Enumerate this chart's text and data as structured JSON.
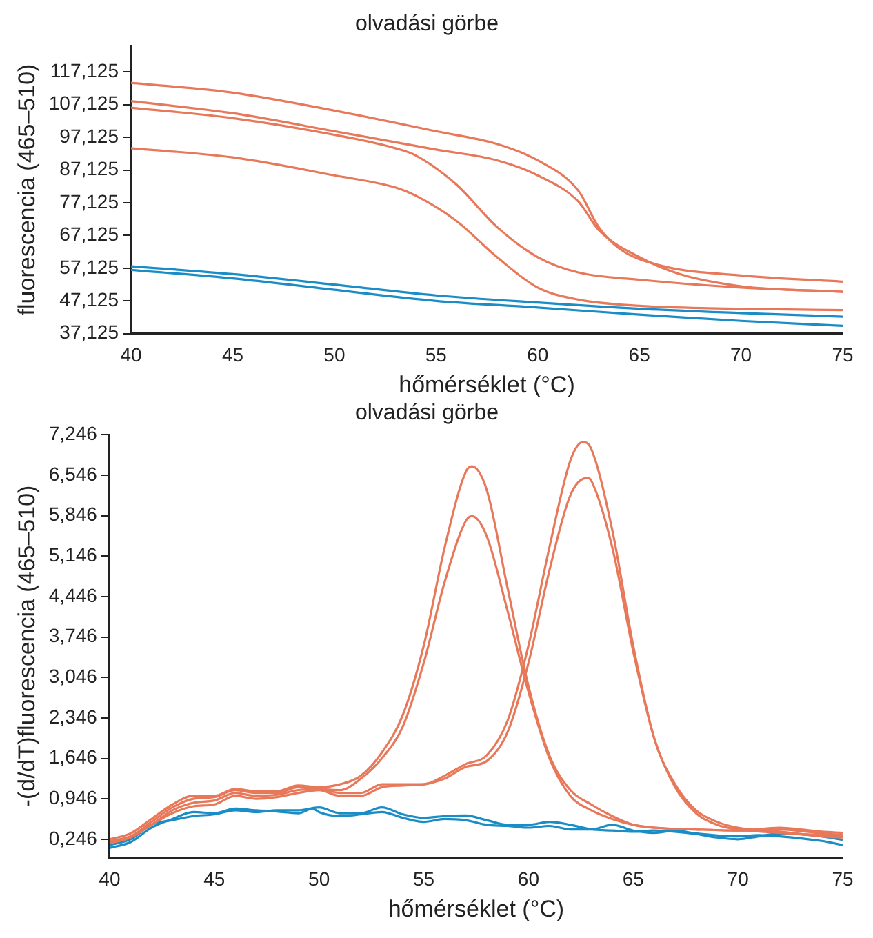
{
  "chart_data": [
    {
      "type": "line",
      "title": "olvadási görbe",
      "xlabel": "hőmérséklet (°C)",
      "ylabel": "fluorescencia (465–510)",
      "grid": false,
      "legend": false,
      "marker": "none",
      "xlim": [
        40,
        75
      ],
      "xticks": [
        40,
        45,
        50,
        55,
        60,
        65,
        70,
        75
      ],
      "ylim": [
        37.125,
        125.125
      ],
      "yticks": [
        {
          "value": 37.125,
          "label": "37,125"
        },
        {
          "value": 47.125,
          "label": "47,125"
        },
        {
          "value": 57.125,
          "label": "57,125"
        },
        {
          "value": 67.125,
          "label": "67,125"
        },
        {
          "value": 77.125,
          "label": "77,125"
        },
        {
          "value": 87.125,
          "label": "87,125"
        },
        {
          "value": 97.125,
          "label": "97,125"
        },
        {
          "value": 107.125,
          "label": "107,125"
        },
        {
          "value": 117.125,
          "label": "117,125"
        }
      ],
      "series": [
        {
          "color": "#e8785a",
          "x": [
            40,
            45,
            50,
            55,
            58,
            60,
            62,
            63,
            64,
            66,
            70,
            75
          ],
          "values": [
            113.8,
            110.8,
            105.3,
            99.0,
            95.1,
            90.1,
            80.8,
            69.7,
            63.2,
            58.0,
            54.9,
            53.0
          ]
        },
        {
          "color": "#e8785a",
          "x": [
            40,
            45,
            50,
            55,
            58,
            60,
            62,
            63,
            65,
            67,
            70,
            75
          ],
          "values": [
            108.2,
            104.5,
            99.0,
            93.4,
            90.1,
            85.5,
            77.5,
            68.8,
            60.5,
            55.3,
            51.6,
            49.9
          ]
        },
        {
          "color": "#e8785a",
          "x": [
            40,
            45,
            50,
            53,
            54,
            56,
            58,
            60,
            62,
            65,
            70,
            75
          ],
          "values": [
            106.2,
            103.0,
            97.9,
            93.8,
            91.6,
            82.7,
            69.7,
            60.5,
            55.8,
            53.6,
            51.2,
            49.9
          ]
        },
        {
          "color": "#e8785a",
          "x": [
            40,
            45,
            50,
            53,
            54,
            56,
            58,
            60,
            62,
            65,
            70,
            75
          ],
          "values": [
            93.8,
            91.0,
            85.5,
            81.8,
            79.3,
            71.6,
            60.5,
            51.2,
            47.5,
            45.6,
            44.7,
            44.3
          ]
        },
        {
          "color": "#1a8cc6",
          "x": [
            40,
            45,
            50,
            55,
            60,
            65,
            70,
            75
          ],
          "values": [
            57.7,
            55.3,
            52.1,
            48.8,
            46.6,
            44.7,
            43.4,
            42.3
          ]
        },
        {
          "color": "#1a8cc6",
          "x": [
            40,
            45,
            50,
            55,
            60,
            65,
            70,
            75
          ],
          "values": [
            56.6,
            54.0,
            50.5,
            47.1,
            45.1,
            42.9,
            41.0,
            39.5
          ]
        }
      ]
    },
    {
      "type": "line",
      "title": "olvadási görbe",
      "xlabel": "hőmérséklet (°C)",
      "ylabel": "-(d/dT)fluorescencia (465–510)",
      "grid": false,
      "legend": false,
      "marker": "none",
      "xlim": [
        40,
        75
      ],
      "xticks": [
        40,
        45,
        50,
        55,
        60,
        65,
        70,
        75
      ],
      "ylim": [
        -0.07,
        7.246
      ],
      "yticks": [
        {
          "value": 0.246,
          "label": "0,246"
        },
        {
          "value": 0.946,
          "label": "0,946"
        },
        {
          "value": 1.646,
          "label": "1,646"
        },
        {
          "value": 2.346,
          "label": "2,346"
        },
        {
          "value": 3.046,
          "label": "3,046"
        },
        {
          "value": 3.746,
          "label": "3,746"
        },
        {
          "value": 4.446,
          "label": "4,446"
        },
        {
          "value": 5.146,
          "label": "5,146"
        },
        {
          "value": 5.846,
          "label": "5,846"
        },
        {
          "value": 6.546,
          "label": "6,546"
        },
        {
          "value": 7.246,
          "label": "7,246"
        }
      ],
      "series": [
        {
          "color": "#e8785a",
          "x": [
            40,
            41,
            42,
            43,
            44,
            45,
            46,
            47,
            48,
            49,
            50,
            51,
            52,
            53,
            54,
            55,
            56,
            57,
            57.3,
            58,
            59,
            60,
            61,
            62,
            63,
            64,
            65,
            66,
            68,
            70,
            72,
            73,
            74,
            75
          ],
          "values": [
            0.25,
            0.35,
            0.6,
            0.85,
            1.0,
            1.0,
            1.12,
            1.08,
            1.08,
            1.18,
            1.15,
            1.2,
            1.35,
            1.75,
            2.4,
            3.6,
            5.3,
            6.6,
            6.7,
            6.3,
            4.6,
            2.9,
            1.7,
            1.1,
            0.85,
            0.65,
            0.5,
            0.45,
            0.42,
            0.4,
            0.45,
            0.42,
            0.38,
            0.36
          ]
        },
        {
          "color": "#e8785a",
          "x": [
            40,
            41,
            42,
            43,
            44,
            45,
            46,
            47,
            48,
            49,
            50,
            51,
            52,
            53,
            54,
            55,
            56,
            57,
            57.3,
            58,
            59,
            60,
            61,
            62,
            63,
            64,
            65,
            66,
            68,
            70,
            72,
            74,
            75
          ],
          "values": [
            0.22,
            0.3,
            0.55,
            0.8,
            0.95,
            0.98,
            1.1,
            1.05,
            1.05,
            1.15,
            1.12,
            1.1,
            1.3,
            1.65,
            2.2,
            3.3,
            4.7,
            5.75,
            5.84,
            5.5,
            4.2,
            2.8,
            1.65,
            1.0,
            0.75,
            0.6,
            0.5,
            0.45,
            0.42,
            0.4,
            0.42,
            0.35,
            0.32
          ]
        },
        {
          "color": "#e8785a",
          "x": [
            40,
            41,
            42,
            43,
            44,
            45,
            46,
            47,
            48,
            49,
            50,
            51,
            52,
            53,
            54,
            55,
            56,
            57,
            58,
            59,
            60,
            61,
            62,
            62.6,
            63,
            64,
            65,
            66,
            67,
            68,
            69,
            70,
            72,
            74,
            75
          ],
          "values": [
            0.2,
            0.3,
            0.5,
            0.75,
            0.88,
            0.92,
            1.05,
            1.0,
            1.02,
            1.1,
            1.12,
            1.05,
            1.05,
            1.2,
            1.2,
            1.2,
            1.35,
            1.55,
            1.7,
            2.3,
            3.6,
            5.3,
            6.8,
            7.12,
            7.0,
            5.6,
            3.6,
            2.0,
            1.2,
            0.75,
            0.55,
            0.45,
            0.38,
            0.3,
            0.28
          ]
        },
        {
          "color": "#e8785a",
          "x": [
            40,
            41,
            42,
            43,
            44,
            45,
            46,
            47,
            48,
            49,
            50,
            51,
            52,
            53,
            54,
            55,
            56,
            57,
            58,
            59,
            60,
            61,
            62,
            62.8,
            63,
            64,
            65,
            66,
            67,
            68,
            69,
            70,
            72,
            74,
            75
          ],
          "values": [
            0.18,
            0.28,
            0.5,
            0.7,
            0.82,
            0.85,
            1.0,
            0.95,
            0.98,
            1.05,
            1.1,
            1.0,
            1.0,
            1.15,
            1.18,
            1.2,
            1.3,
            1.5,
            1.6,
            2.1,
            3.3,
            4.9,
            6.2,
            6.5,
            6.45,
            5.3,
            3.5,
            2.0,
            1.15,
            0.7,
            0.5,
            0.42,
            0.36,
            0.32,
            0.3
          ]
        },
        {
          "color": "#1a8cc6",
          "x": [
            40,
            41,
            42,
            43,
            44,
            45,
            46,
            47,
            48,
            49,
            49.7,
            50,
            51,
            52,
            53,
            54,
            55,
            56,
            57,
            58,
            59,
            60,
            61,
            62,
            63,
            64,
            65,
            66,
            67,
            68,
            70,
            71,
            72,
            74,
            75
          ],
          "values": [
            0.1,
            0.2,
            0.45,
            0.6,
            0.72,
            0.7,
            0.78,
            0.75,
            0.73,
            0.7,
            0.78,
            0.72,
            0.65,
            0.68,
            0.72,
            0.62,
            0.55,
            0.6,
            0.58,
            0.5,
            0.48,
            0.45,
            0.48,
            0.42,
            0.42,
            0.5,
            0.4,
            0.36,
            0.4,
            0.35,
            0.3,
            0.32,
            0.3,
            0.22,
            0.15
          ]
        },
        {
          "color": "#1a8cc6",
          "x": [
            40,
            41,
            42,
            43,
            44,
            45,
            46,
            47,
            48,
            49,
            50,
            51,
            52,
            53,
            54,
            55,
            56,
            57,
            58,
            59,
            60,
            61,
            62,
            63,
            64,
            65,
            66,
            67,
            68,
            69,
            70,
            71,
            72,
            74,
            75
          ],
          "values": [
            0.15,
            0.25,
            0.5,
            0.58,
            0.65,
            0.68,
            0.75,
            0.72,
            0.75,
            0.75,
            0.8,
            0.7,
            0.7,
            0.8,
            0.68,
            0.62,
            0.65,
            0.66,
            0.58,
            0.5,
            0.5,
            0.55,
            0.5,
            0.42,
            0.4,
            0.38,
            0.4,
            0.38,
            0.34,
            0.28,
            0.25,
            0.3,
            0.35,
            0.3,
            0.24
          ]
        }
      ]
    }
  ]
}
